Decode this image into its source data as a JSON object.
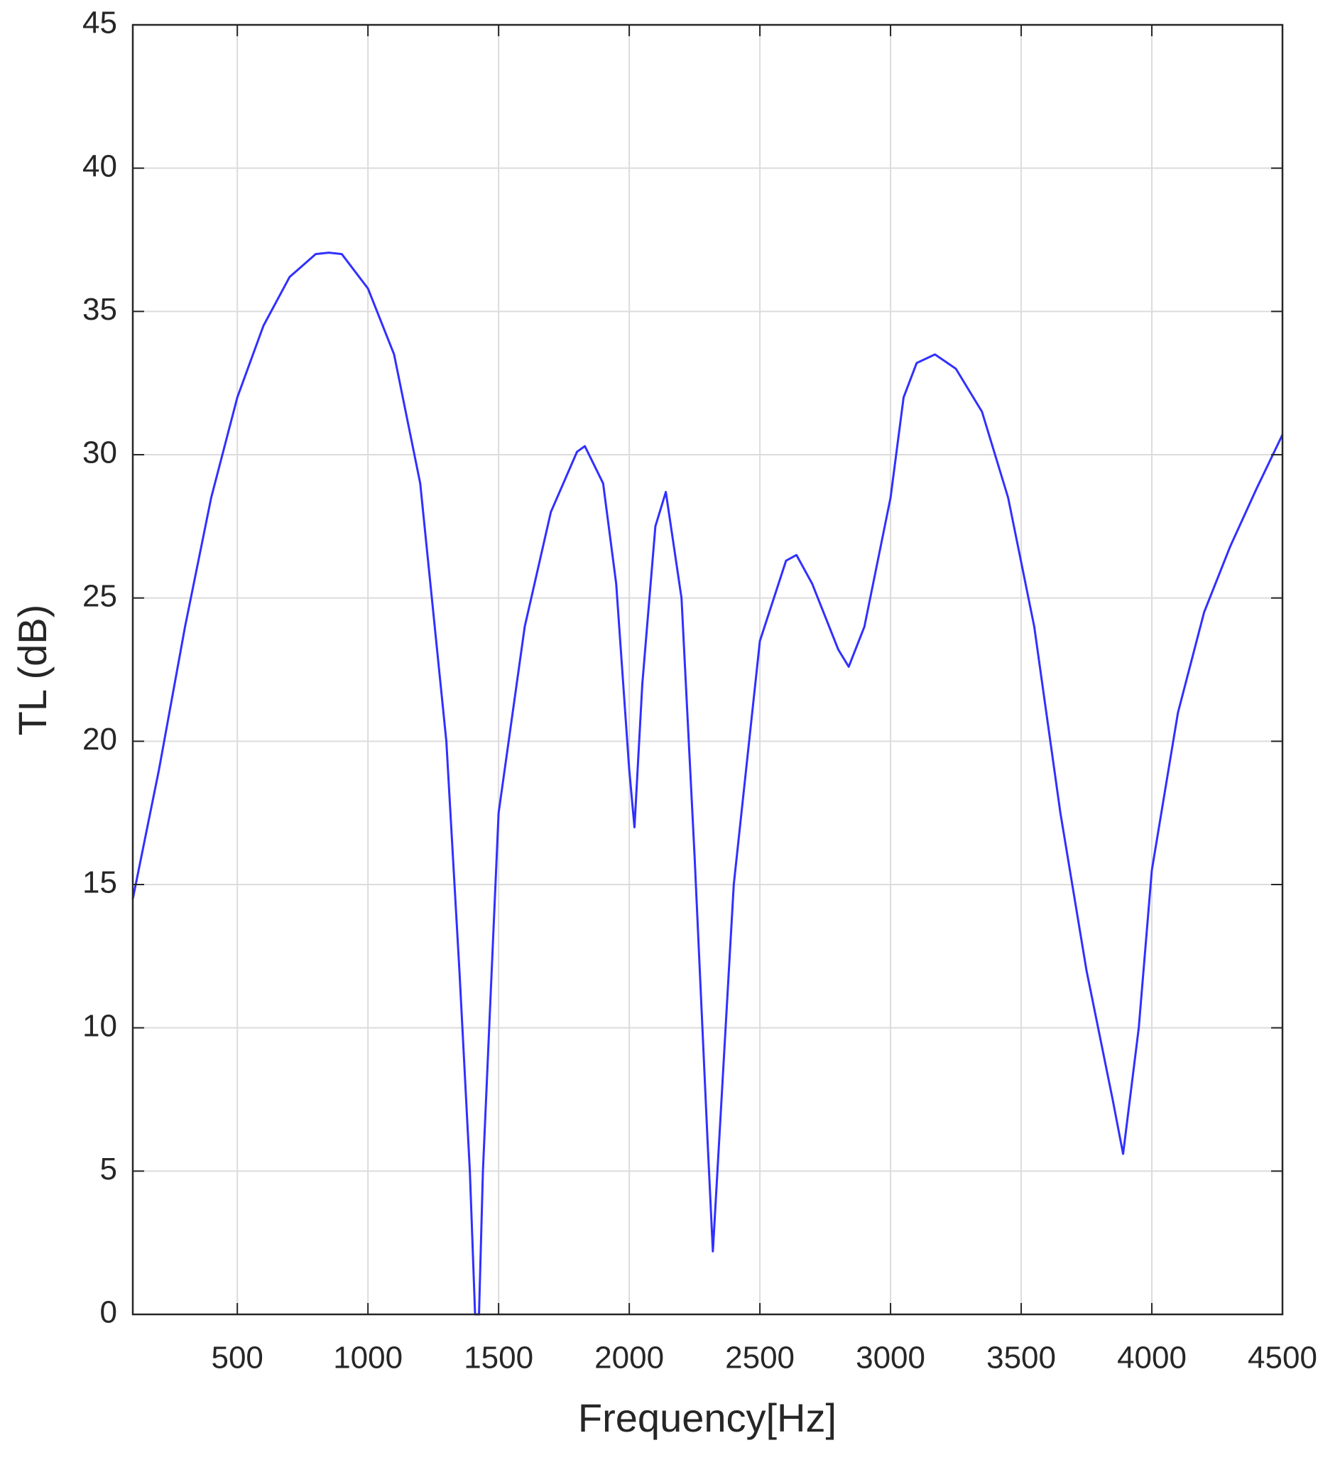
{
  "chart_data": {
    "type": "line",
    "x_label": "Frequency[Hz]",
    "y_label": "TL (dB)",
    "x": [
      100,
      200,
      300,
      400,
      500,
      600,
      700,
      800,
      850,
      900,
      1000,
      1100,
      1200,
      1300,
      1350,
      1390,
      1410,
      1425,
      1440,
      1500,
      1600,
      1700,
      1800,
      1830,
      1900,
      1950,
      2000,
      2020,
      2050,
      2100,
      2140,
      2200,
      2250,
      2300,
      2320,
      2350,
      2400,
      2500,
      2600,
      2640,
      2700,
      2800,
      2840,
      2900,
      3000,
      3050,
      3100,
      3170,
      3250,
      3350,
      3450,
      3550,
      3650,
      3750,
      3850,
      3890,
      3950,
      4000,
      4100,
      4200,
      4300,
      4400,
      4500
    ],
    "series": [
      {
        "color": "#3030ff",
        "values": [
          14.5,
          19,
          24,
          28.5,
          32,
          34.5,
          36.2,
          37,
          37.05,
          37,
          35.8,
          33.5,
          29,
          20,
          12,
          5,
          0,
          0,
          5,
          17.5,
          24,
          28,
          30.1,
          30.3,
          29,
          25.5,
          19,
          17,
          22,
          27.5,
          28.7,
          25,
          16,
          6,
          2.2,
          7,
          15,
          23.5,
          26.3,
          26.5,
          25.5,
          23.2,
          22.6,
          24,
          28.5,
          32,
          33.2,
          33.5,
          33,
          31.5,
          28.5,
          24,
          17.5,
          12,
          7.5,
          5.6,
          10,
          15.5,
          21,
          24.5,
          26.8,
          28.8,
          30.7
        ]
      }
    ],
    "xlim": [
      100,
      4500
    ],
    "xticks": [
      500,
      1000,
      1500,
      2000,
      2500,
      3000,
      3500,
      4000,
      4500
    ],
    "ylim": [
      0,
      45
    ],
    "yticks": [
      0,
      5,
      10,
      15,
      20,
      25,
      30,
      35,
      40,
      45
    ],
    "grid": true
  }
}
